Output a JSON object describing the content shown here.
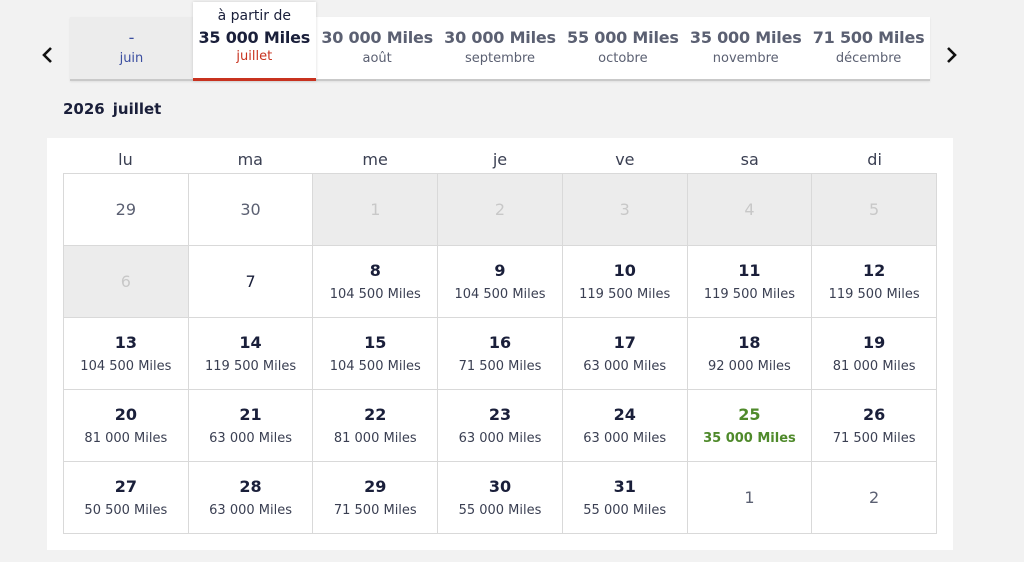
{
  "nav": {
    "prev_icon": "chevron-left-icon",
    "next_icon": "chevron-right-icon"
  },
  "months": [
    {
      "price": "-",
      "name": "juin",
      "state": "disabled"
    },
    {
      "from": "à partir de",
      "price": "35 000 Miles",
      "name": "juillet",
      "state": "selected"
    },
    {
      "price": "30 000 Miles",
      "name": "août",
      "state": "normal"
    },
    {
      "price": "30 000 Miles",
      "name": "septembre",
      "state": "normal"
    },
    {
      "price": "55 000 Miles",
      "name": "octobre",
      "state": "normal"
    },
    {
      "price": "35 000 Miles",
      "name": "novembre",
      "state": "normal"
    },
    {
      "price": "71 500 Miles",
      "name": "décembre",
      "state": "normal"
    }
  ],
  "header": {
    "year": "2026",
    "month": "juillet"
  },
  "weekdays": [
    "lu",
    "ma",
    "me",
    "je",
    "ve",
    "sa",
    "di"
  ],
  "colors": {
    "accent": "#c8321f",
    "best": "#4f8a2b",
    "navy": "#1a1f3a"
  },
  "days": [
    {
      "d": "29",
      "t": "other"
    },
    {
      "d": "30",
      "t": "other"
    },
    {
      "d": "1",
      "t": "blocked"
    },
    {
      "d": "2",
      "t": "blocked"
    },
    {
      "d": "3",
      "t": "blocked"
    },
    {
      "d": "4",
      "t": "blocked"
    },
    {
      "d": "5",
      "t": "blocked"
    },
    {
      "d": "6",
      "t": "blocked"
    },
    {
      "d": "7",
      "t": "plain"
    },
    {
      "d": "8",
      "t": "priced",
      "m": "104 500 Miles"
    },
    {
      "d": "9",
      "t": "priced",
      "m": "104 500 Miles"
    },
    {
      "d": "10",
      "t": "priced",
      "m": "119 500 Miles"
    },
    {
      "d": "11",
      "t": "priced",
      "m": "119 500 Miles"
    },
    {
      "d": "12",
      "t": "priced",
      "m": "119 500 Miles"
    },
    {
      "d": "13",
      "t": "priced",
      "m": "104 500 Miles"
    },
    {
      "d": "14",
      "t": "priced",
      "m": "119 500 Miles"
    },
    {
      "d": "15",
      "t": "priced",
      "m": "104 500 Miles"
    },
    {
      "d": "16",
      "t": "priced",
      "m": "71 500 Miles"
    },
    {
      "d": "17",
      "t": "priced",
      "m": "63 000 Miles"
    },
    {
      "d": "18",
      "t": "priced",
      "m": "92 000 Miles"
    },
    {
      "d": "19",
      "t": "priced",
      "m": "81 000 Miles"
    },
    {
      "d": "20",
      "t": "priced",
      "m": "81 000 Miles"
    },
    {
      "d": "21",
      "t": "priced",
      "m": "63 000 Miles"
    },
    {
      "d": "22",
      "t": "priced",
      "m": "81 000 Miles"
    },
    {
      "d": "23",
      "t": "priced",
      "m": "63 000 Miles"
    },
    {
      "d": "24",
      "t": "priced",
      "m": "63 000 Miles"
    },
    {
      "d": "25",
      "t": "priced best",
      "m": "35 000 Miles"
    },
    {
      "d": "26",
      "t": "priced",
      "m": "71 500 Miles"
    },
    {
      "d": "27",
      "t": "priced",
      "m": "50 500 Miles"
    },
    {
      "d": "28",
      "t": "priced",
      "m": "63 000 Miles"
    },
    {
      "d": "29",
      "t": "priced",
      "m": "71 500 Miles"
    },
    {
      "d": "30",
      "t": "priced",
      "m": "55 000 Miles"
    },
    {
      "d": "31",
      "t": "priced",
      "m": "55 000 Miles"
    },
    {
      "d": "1",
      "t": "other"
    },
    {
      "d": "2",
      "t": "other"
    }
  ]
}
